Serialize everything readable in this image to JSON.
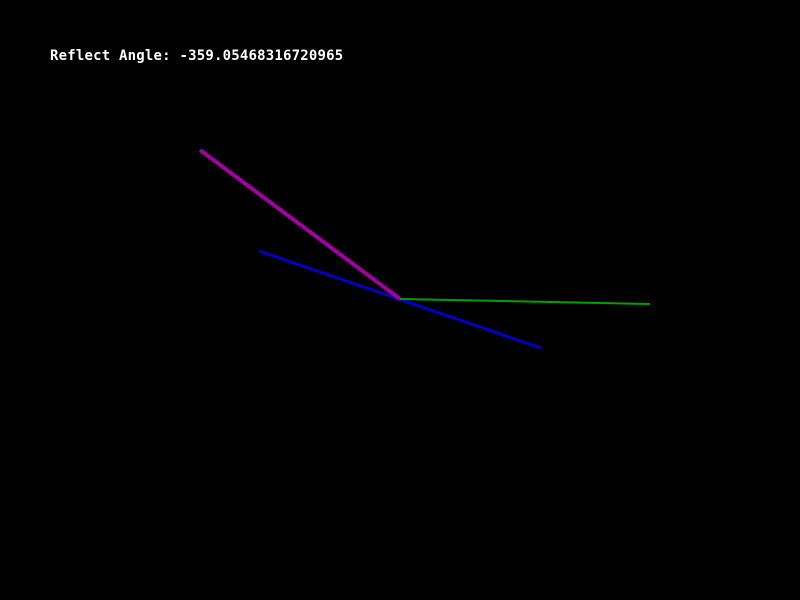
{
  "hud": {
    "reflect_prefix": "Reflect Angle: ",
    "reflect_value": "-359.05468316720965"
  },
  "colors": {
    "background": "#000000",
    "text": "#ffffff",
    "incident_ray": "#a000a0",
    "surface_line": "#0000c0",
    "reflected_ray": "#00a000"
  }
}
